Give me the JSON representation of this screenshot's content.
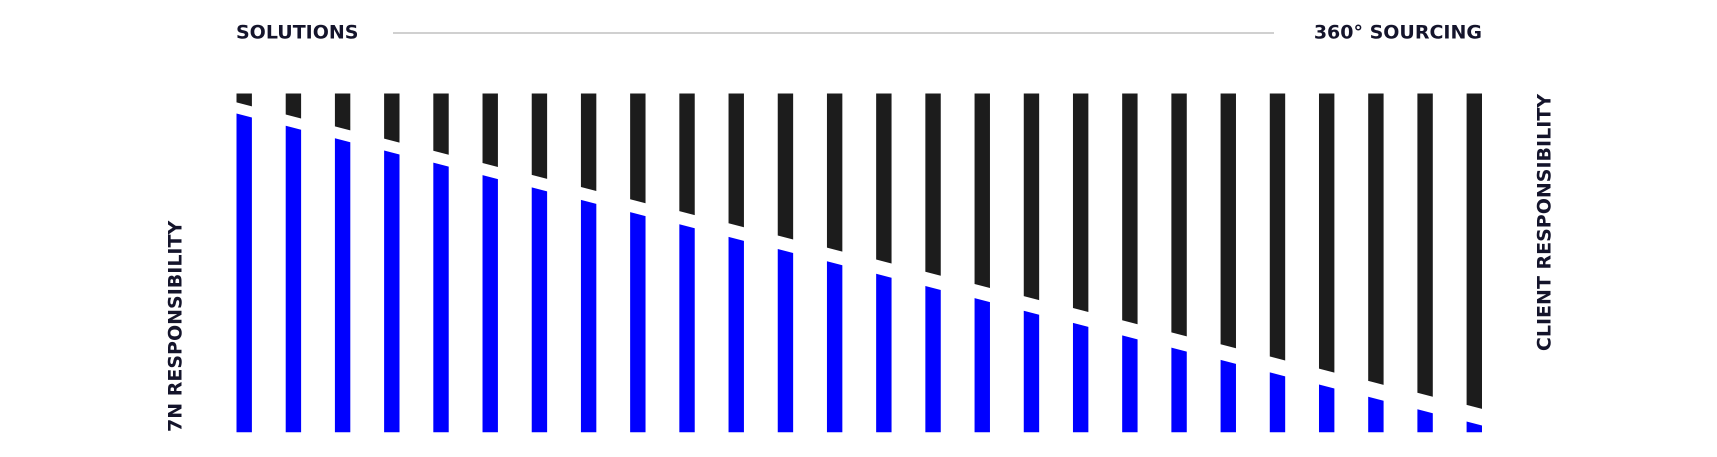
{
  "chart_data": {
    "type": "bar",
    "x_start_label": "SOLUTIONS",
    "x_end_label": "360° SOURCING",
    "ylim": [
      0,
      100
    ],
    "series": [
      {
        "name": "7N RESPONSIBILITY",
        "color": "#0000ff",
        "position": "bottom",
        "values": [
          93.5,
          89.9,
          86.2,
          82.6,
          79.0,
          75.3,
          71.7,
          68.0,
          64.4,
          60.8,
          57.1,
          53.5,
          49.9,
          46.2,
          42.6,
          39.0,
          35.3,
          31.7,
          28.0,
          24.4,
          20.8,
          17.1,
          13.5,
          9.9,
          6.2,
          2.6
        ]
      },
      {
        "name": "CLIENT RESPONSIBILITY",
        "color": "#1c1c1c",
        "position": "top",
        "values": [
          3.2,
          6.8,
          10.3,
          13.9,
          17.5,
          21.1,
          24.6,
          28.2,
          31.8,
          35.3,
          38.9,
          42.5,
          46.1,
          49.6,
          53.2,
          56.8,
          60.4,
          63.9,
          67.5,
          71.1,
          74.6,
          78.2,
          81.8,
          85.4,
          88.9,
          92.5
        ]
      }
    ]
  }
}
